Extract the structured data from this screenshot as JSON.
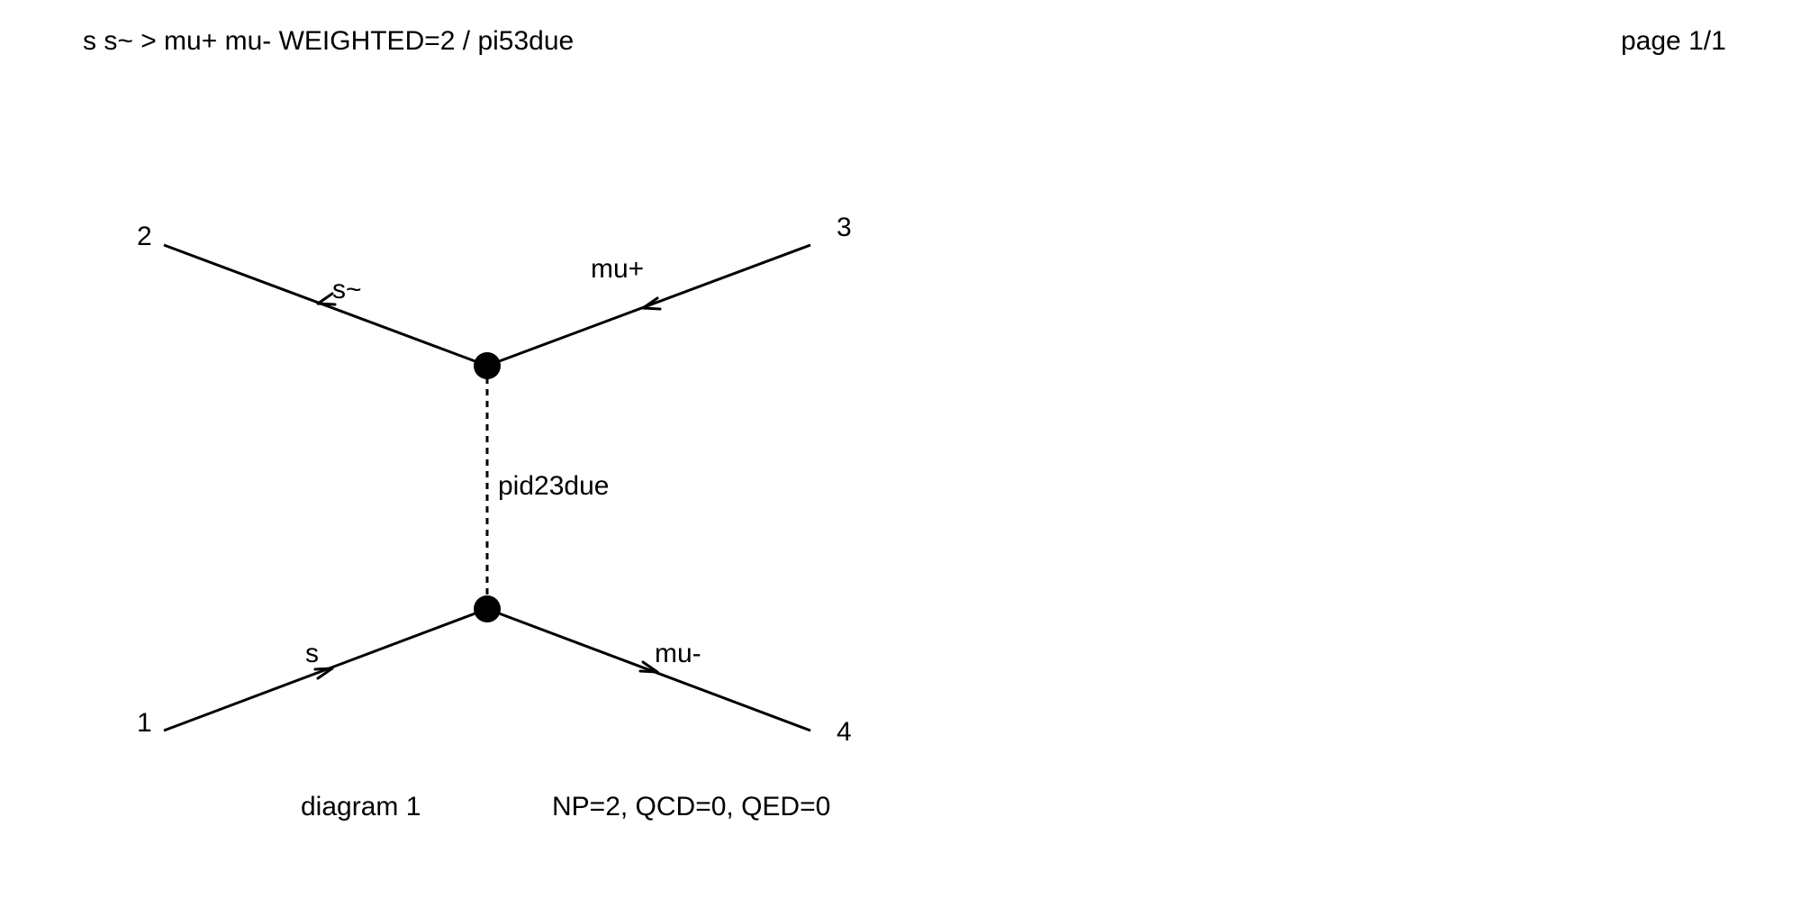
{
  "header": {
    "process": "s s~ > mu+ mu- WEIGHTED=2 / pi53due",
    "page": "page 1/1"
  },
  "diagram": {
    "external_labels": {
      "n1": "1",
      "n2": "2",
      "n3": "3",
      "n4": "4"
    },
    "particle_labels": {
      "s": "s",
      "s_bar": "s~",
      "mu_plus": "mu+",
      "mu_minus": "mu-",
      "propagator": "pid23due"
    },
    "caption": "diagram 1",
    "couplings": "NP=2, QCD=0, QED=0"
  }
}
